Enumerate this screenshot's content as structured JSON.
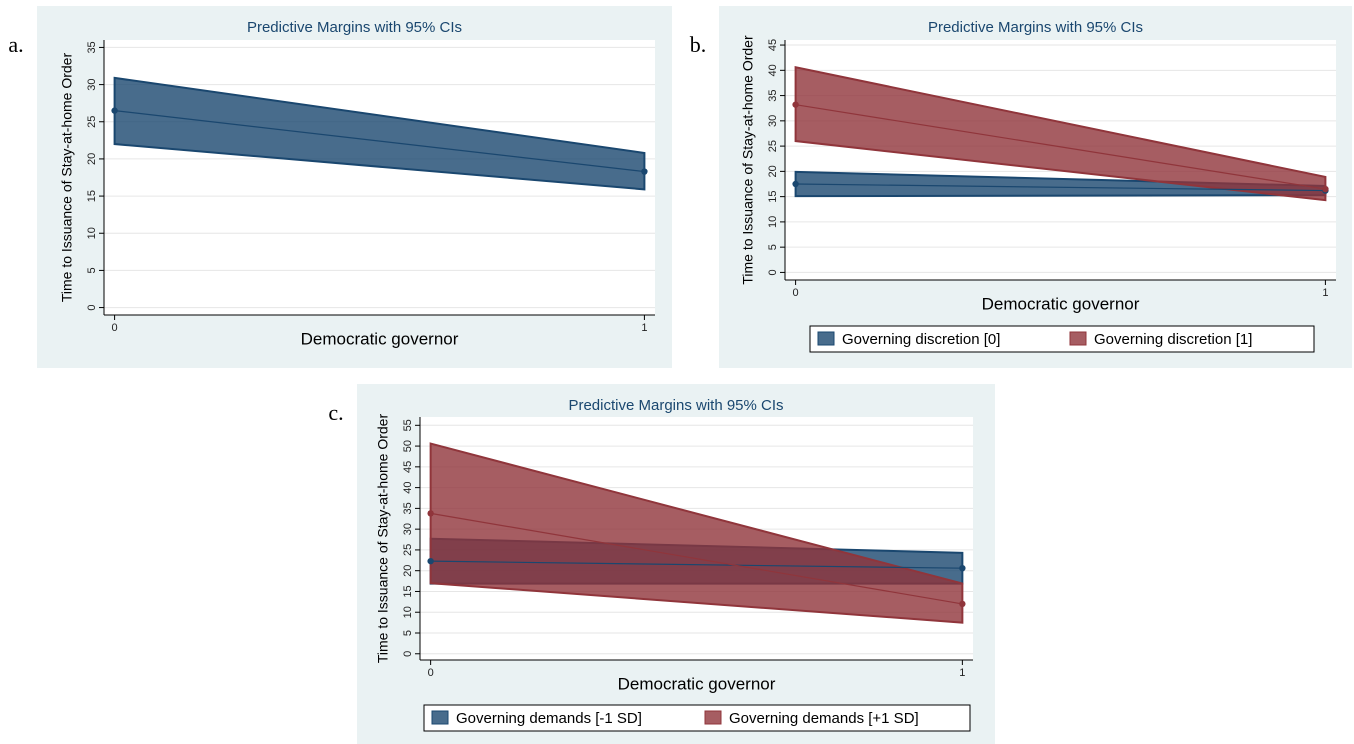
{
  "chart_data": [
    {
      "type": "line",
      "panel_label": "a.",
      "title": "Predictive Margins with 95% CIs",
      "x_label": "Democratic governor",
      "y_label": "Time to Issuance of Stay-at-home Order",
      "x": [
        0,
        1
      ],
      "xlim": [
        -0.02,
        1.02
      ],
      "xticks": [
        0,
        1
      ],
      "ylim": [
        -1,
        36
      ],
      "yticks": [
        0,
        5,
        10,
        15,
        20,
        25,
        30,
        35
      ],
      "grid": true,
      "legend": false,
      "series": [
        {
          "name": null,
          "color": "#1a476f",
          "values": [
            26.5,
            18.3
          ],
          "lower": [
            22,
            15.9
          ],
          "upper": [
            30.9,
            20.8
          ]
        }
      ]
    },
    {
      "type": "line",
      "panel_label": "b.",
      "title": "Predictive Margins with 95% CIs",
      "x_label": "Democratic governor",
      "y_label": "Time to Issuance of Stay-at-home Order",
      "x": [
        0,
        1
      ],
      "xlim": [
        -0.02,
        1.02
      ],
      "xticks": [
        0,
        1
      ],
      "ylim": [
        -1.5,
        46
      ],
      "yticks": [
        0,
        5,
        10,
        15,
        20,
        25,
        30,
        35,
        40,
        45
      ],
      "grid": true,
      "legend": true,
      "series": [
        {
          "name": "Governing discretion [0]",
          "color": "#1a476f",
          "values": [
            17.5,
            16.2
          ],
          "lower": [
            15.1,
            15.3
          ],
          "upper": [
            19.9,
            17.1
          ]
        },
        {
          "name": "Governing discretion [1]",
          "color": "#90353b",
          "values": [
            33.2,
            16.5
          ],
          "lower": [
            26,
            14.3
          ],
          "upper": [
            40.6,
            18.9
          ]
        }
      ]
    },
    {
      "type": "line",
      "panel_label": "c.",
      "title": "Predictive Margins with 95% CIs",
      "x_label": "Democratic governor",
      "y_label": "Time to Issuance of Stay-at-home Order",
      "x": [
        0,
        1
      ],
      "xlim": [
        -0.02,
        1.02
      ],
      "xticks": [
        0,
        1
      ],
      "ylim": [
        -1.5,
        57
      ],
      "yticks": [
        0,
        5,
        10,
        15,
        20,
        25,
        30,
        35,
        40,
        45,
        50,
        55
      ],
      "grid": true,
      "legend": true,
      "series": [
        {
          "name": "Governing demands [-1 SD]",
          "color": "#1a476f",
          "values": [
            22.3,
            20.6
          ],
          "lower": [
            16.9,
            16.9
          ],
          "upper": [
            27.7,
            24.3
          ]
        },
        {
          "name": "Governing demands [+1 SD]",
          "color": "#90353b",
          "values": [
            33.8,
            12
          ],
          "lower": [
            17,
            7.5
          ],
          "upper": [
            50.6,
            16.9
          ]
        }
      ]
    }
  ]
}
